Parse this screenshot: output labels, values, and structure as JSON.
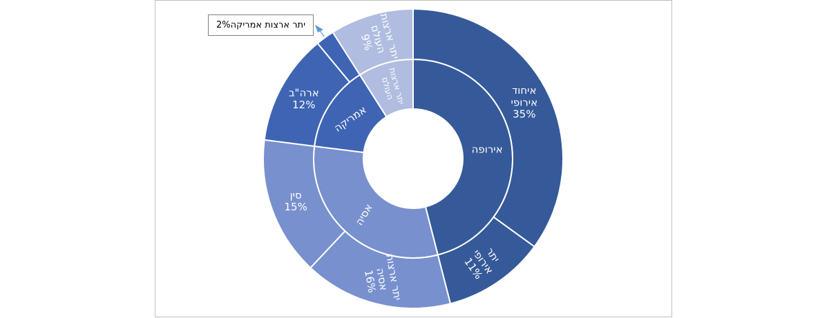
{
  "chart_data": {
    "type": "sunburst",
    "title": "",
    "inner_ring": [
      {
        "label": "אירופה",
        "value": 46,
        "color": "#365a99"
      },
      {
        "label": "אסיה",
        "value": 31,
        "color": "#7890cd"
      },
      {
        "label": "אמריקה",
        "value": 14,
        "color": "#3e64b3"
      },
      {
        "label": "יתר ארצות העולם",
        "value": 9,
        "color": "#b0bde0"
      }
    ],
    "outer_ring": [
      {
        "parent": "אירופה",
        "label": "איחוד אירופי",
        "percent": "35%",
        "value": 35,
        "color": "#365a99"
      },
      {
        "parent": "אירופה",
        "label": "יתר אירופה",
        "percent": "11%",
        "value": 11,
        "color": "#365a99"
      },
      {
        "parent": "אסיה",
        "label": "יתר ארצות אסיה",
        "percent": "16%",
        "value": 16,
        "color": "#7890cd"
      },
      {
        "parent": "אסיה",
        "label": "סין",
        "percent": "15%",
        "value": 15,
        "color": "#7890cd"
      },
      {
        "parent": "אמריקה",
        "label": "ארה\"ב",
        "percent": "12%",
        "value": 12,
        "color": "#3e64b3"
      },
      {
        "parent": "אמריקה",
        "label": "יתר ארצות אמריקה",
        "percent": "2%",
        "value": 2,
        "color": "#3e64b3"
      },
      {
        "parent": "יתר ארצות העולם",
        "label": "יתר ארצות העולם",
        "percent": "9%",
        "value": 9,
        "color": "#b0bde0"
      }
    ],
    "callout": {
      "label": "יתר ארצות אמריקה",
      "percent": "2%"
    },
    "label_color": "#ffffff",
    "arrow_color": "#5b9bd5"
  }
}
